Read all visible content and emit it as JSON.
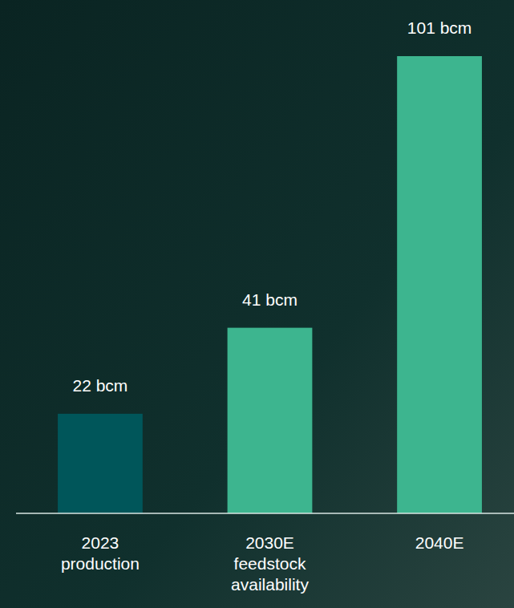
{
  "chart_data": {
    "type": "bar",
    "categories": [
      "2023 production",
      "2030E feedstock availability",
      "2040E"
    ],
    "values": [
      22,
      41,
      101
    ],
    "value_labels": [
      "22 bcm",
      "41 bcm",
      "101 bcm"
    ],
    "colors": [
      "#00565a",
      "#3db58f",
      "#3db58f"
    ],
    "ylim": [
      0,
      101
    ],
    "data_labels": true,
    "tick_labels": "x",
    "grid": false
  }
}
